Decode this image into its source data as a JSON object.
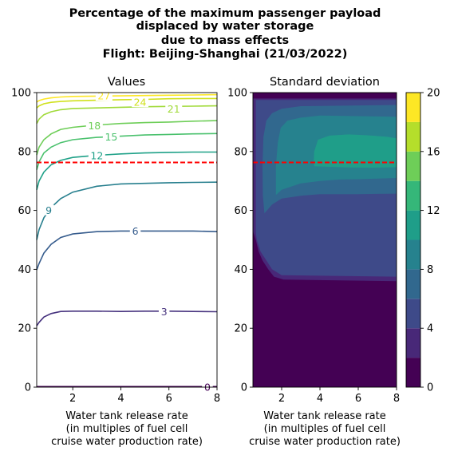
{
  "figure": {
    "title_lines": [
      "Percentage of the maximum passenger payload",
      "displaced by water storage",
      "due to mass effects",
      "Flight: Beijing-Shanghai (21/03/2022)"
    ]
  },
  "chart_data": [
    {
      "type": "contour",
      "title": "Values",
      "xlabel_lines": [
        "Water tank release rate",
        "(in multiples of fuel cell",
        "cruise water production rate)"
      ],
      "ylabel": "",
      "xlim": [
        0.5,
        8
      ],
      "ylim": [
        0,
        100
      ],
      "xticks": [
        2,
        4,
        6,
        8
      ],
      "yticks": [
        0,
        20,
        40,
        60,
        80,
        100
      ],
      "reference_line": {
        "y": 76.3,
        "style": "dashed",
        "color": "#ff0000"
      },
      "contours": [
        {
          "level": "0",
          "color": "#440154",
          "points": [
            [
              0.5,
              0.2
            ],
            [
              8,
              0.2
            ]
          ],
          "label_at": [
            7.6,
            0.0
          ]
        },
        {
          "level": "3",
          "color": "#46327e",
          "points": [
            [
              0.5,
              20.8
            ],
            [
              0.6,
              22
            ],
            [
              0.8,
              23.8
            ],
            [
              1.1,
              25
            ],
            [
              1.5,
              25.7
            ],
            [
              2,
              25.8
            ],
            [
              3,
              25.8
            ],
            [
              4,
              25.7
            ],
            [
              5,
              25.8
            ],
            [
              6,
              25.8
            ],
            [
              7,
              25.7
            ],
            [
              8,
              25.6
            ]
          ],
          "label_at": [
            5.8,
            25.6
          ]
        },
        {
          "level": "6",
          "color": "#365c8d",
          "points": [
            [
              0.5,
              39.8
            ],
            [
              0.6,
              42
            ],
            [
              0.8,
              45.5
            ],
            [
              1.1,
              48.5
            ],
            [
              1.5,
              50.8
            ],
            [
              2,
              52
            ],
            [
              3,
              52.8
            ],
            [
              4,
              53
            ],
            [
              5,
              53
            ],
            [
              6,
              53
            ],
            [
              7,
              53
            ],
            [
              8,
              52.8
            ]
          ],
          "label_at": [
            4.6,
            53.0
          ]
        },
        {
          "level": "9",
          "color": "#277f8e",
          "points": [
            [
              0.5,
              50
            ],
            [
              0.6,
              53.5
            ],
            [
              0.8,
              57.5
            ],
            [
              1.1,
              61
            ],
            [
              1.5,
              64
            ],
            [
              2,
              66.2
            ],
            [
              3,
              68.2
            ],
            [
              4,
              69
            ],
            [
              5,
              69.2
            ],
            [
              6,
              69.4
            ],
            [
              7,
              69.5
            ],
            [
              8,
              69.6
            ]
          ],
          "label_at": [
            1.0,
            60.0
          ]
        },
        {
          "level": "12",
          "color": "#1fa188",
          "points": [
            [
              0.5,
              67
            ],
            [
              0.6,
              70
            ],
            [
              0.8,
              73
            ],
            [
              1.1,
              75.5
            ],
            [
              1.5,
              77
            ],
            [
              2,
              78
            ],
            [
              3,
              78.7
            ],
            [
              4,
              79.2
            ],
            [
              5,
              79.5
            ],
            [
              6,
              79.7
            ],
            [
              7,
              79.8
            ],
            [
              8,
              79.8
            ]
          ],
          "label_at": [
            3.0,
            78.6
          ]
        },
        {
          "level": "15",
          "color": "#4ac16d",
          "points": [
            [
              0.5,
              73.8
            ],
            [
              0.6,
              76.5
            ],
            [
              0.8,
              79.5
            ],
            [
              1.1,
              81.5
            ],
            [
              1.5,
              83
            ],
            [
              2,
              84
            ],
            [
              3,
              84.8
            ],
            [
              4,
              85.2
            ],
            [
              5,
              85.6
            ],
            [
              6,
              85.8
            ],
            [
              7,
              86
            ],
            [
              8,
              86.1
            ]
          ],
          "label_at": [
            3.6,
            85.0
          ]
        },
        {
          "level": "18",
          "color": "#6ece58",
          "points": [
            [
              0.5,
              78.8
            ],
            [
              0.6,
              81.5
            ],
            [
              0.8,
              84
            ],
            [
              1.1,
              86
            ],
            [
              1.5,
              87.5
            ],
            [
              2,
              88.2
            ],
            [
              3,
              89
            ],
            [
              4,
              89.5
            ],
            [
              5,
              89.8
            ],
            [
              6,
              90
            ],
            [
              7,
              90.3
            ],
            [
              8,
              90.5
            ]
          ],
          "label_at": [
            2.9,
            88.7
          ]
        },
        {
          "level": "21",
          "color": "#a0da39",
          "points": [
            [
              0.5,
              89.5
            ],
            [
              0.6,
              91
            ],
            [
              0.8,
              92.5
            ],
            [
              1.1,
              93.5
            ],
            [
              1.5,
              94.2
            ],
            [
              2,
              94.6
            ],
            [
              3,
              94.8
            ],
            [
              4,
              95
            ],
            [
              5,
              95.2
            ],
            [
              6,
              95.3
            ],
            [
              7,
              95.4
            ],
            [
              8,
              95.5
            ]
          ],
          "label_at": [
            6.2,
            94.4
          ]
        },
        {
          "level": "24",
          "color": "#d0e11c",
          "points": [
            [
              0.5,
              94.8
            ],
            [
              0.6,
              95.5
            ],
            [
              0.8,
              96.2
            ],
            [
              1.1,
              96.7
            ],
            [
              1.5,
              97
            ],
            [
              2,
              97.2
            ],
            [
              3,
              97.4
            ],
            [
              4,
              97.6
            ],
            [
              5,
              97.7
            ],
            [
              6,
              97.9
            ],
            [
              7,
              98
            ],
            [
              8,
              98
            ]
          ],
          "label_at": [
            4.8,
            96.7
          ]
        },
        {
          "level": "27",
          "color": "#fde725",
          "points": [
            [
              0.5,
              96.8
            ],
            [
              0.6,
              97.3
            ],
            [
              0.8,
              97.8
            ],
            [
              1.1,
              98.2
            ],
            [
              1.5,
              98.5
            ],
            [
              2,
              98.7
            ],
            [
              3,
              98.8
            ],
            [
              4,
              98.9
            ],
            [
              5,
              99
            ],
            [
              6,
              99.1
            ],
            [
              7,
              99.2
            ],
            [
              8,
              99.3
            ]
          ],
          "label_at": [
            3.3,
            98.9
          ]
        }
      ]
    },
    {
      "type": "heatmap",
      "title": "Standard deviation",
      "xlabel_lines": [
        "Water tank release rate",
        "(in multiples of fuel cell",
        "cruise water production rate)"
      ],
      "ylabel": "",
      "xlim": [
        0.5,
        8
      ],
      "ylim": [
        0,
        100
      ],
      "xticks": [
        2,
        4,
        6,
        8
      ],
      "yticks": [
        0,
        20,
        40,
        60,
        80,
        100
      ],
      "reference_line": {
        "y": 76.3,
        "style": "dashed",
        "color": "#ff0000"
      },
      "colorbar": {
        "levels": [
          0,
          2,
          4,
          6,
          8,
          10,
          12,
          14,
          16,
          18,
          20
        ],
        "ticks": [
          "0",
          "4",
          "8",
          "12",
          "16",
          "20"
        ],
        "colors": [
          "#440154",
          "#482878",
          "#3e4a89",
          "#31688e",
          "#26828e",
          "#1f9e89",
          "#35b779",
          "#6ece58",
          "#b5de2b",
          "#fde725"
        ]
      },
      "regions": [
        {
          "band": "2-4",
          "color": "#482878",
          "points": [
            [
              0.5,
              1
            ],
            [
              8,
              1
            ],
            [
              8,
              98
            ],
            [
              0.5,
              98
            ]
          ]
        },
        {
          "band": "4-6",
          "color": "#3e4a89",
          "points": [
            [
              0.65,
              1.5
            ],
            [
              8,
              1.5
            ],
            [
              8,
              97.5
            ],
            [
              0.65,
              97.5
            ]
          ]
        },
        {
          "band": "2-4",
          "color": "#482878",
          "points": [
            [
              0.5,
              1
            ],
            [
              8,
              1
            ],
            [
              8,
              37.5
            ],
            [
              2,
              38
            ],
            [
              1.5,
              40
            ],
            [
              1.2,
              43
            ],
            [
              0.9,
              46
            ],
            [
              0.7,
              50
            ],
            [
              0.6,
              55
            ],
            [
              0.5,
              57
            ]
          ]
        },
        {
          "band": "0-2",
          "color": "#440154",
          "points": [
            [
              0.5,
              0
            ],
            [
              8,
              0
            ],
            [
              8,
              36
            ],
            [
              2.1,
              36.5
            ],
            [
              1.6,
              37.5
            ],
            [
              1.3,
              40
            ],
            [
              1,
              43
            ],
            [
              0.8,
              46
            ],
            [
              0.65,
              50
            ],
            [
              0.5,
              53
            ]
          ]
        },
        {
          "band": "6-8",
          "color": "#31688e",
          "points": [
            [
              1.1,
              59
            ],
            [
              1.5,
              62
            ],
            [
              2,
              64
            ],
            [
              3,
              65
            ],
            [
              4,
              65.5
            ],
            [
              5,
              65.5
            ],
            [
              6,
              65.5
            ],
            [
              7,
              65.6
            ],
            [
              8,
              65.7
            ],
            [
              8,
              95.8
            ],
            [
              3,
              95.4
            ],
            [
              2,
              94.5
            ],
            [
              1.5,
              93
            ],
            [
              1.2,
              90.5
            ],
            [
              1.05,
              85
            ],
            [
              1,
              75
            ],
            [
              1.02,
              65
            ]
          ]
        },
        {
          "band": "8-10",
          "color": "#26828e",
          "points": [
            [
              1.7,
              65.2
            ],
            [
              2,
              67
            ],
            [
              3,
              69.2
            ],
            [
              4,
              70
            ],
            [
              5,
              70.5
            ],
            [
              6,
              70.6
            ],
            [
              7,
              70.8
            ],
            [
              8,
              71
            ],
            [
              8,
              91.8
            ],
            [
              4,
              92.2
            ],
            [
              3,
              91.5
            ],
            [
              2.3,
              90.5
            ],
            [
              1.95,
              88
            ],
            [
              1.8,
              83
            ],
            [
              1.7,
              75
            ]
          ]
        },
        {
          "band": "10-12",
          "color": "#1f9e89",
          "points": [
            [
              3.7,
              75
            ],
            [
              4.5,
              74.8
            ],
            [
              5.5,
              74.6
            ],
            [
              6.5,
              74.5
            ],
            [
              7.5,
              74.6
            ],
            [
              8,
              74.7
            ],
            [
              8,
              84.5
            ],
            [
              7.5,
              85
            ],
            [
              6.5,
              85.5
            ],
            [
              5.5,
              85.8
            ],
            [
              4.5,
              85.4
            ],
            [
              3.9,
              84
            ],
            [
              3.7,
              80
            ],
            [
              3.68,
              77
            ]
          ]
        }
      ]
    }
  ]
}
